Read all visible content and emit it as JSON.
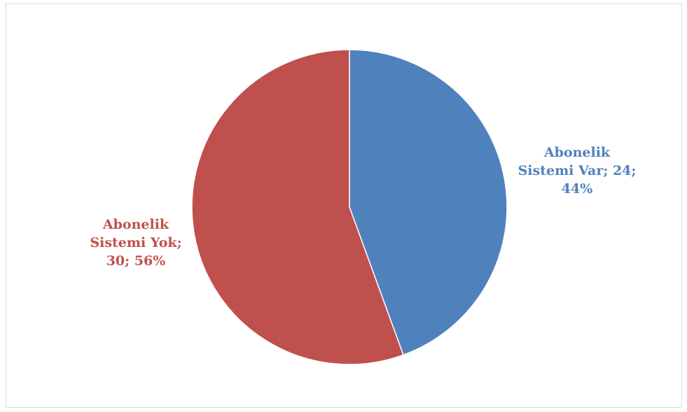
{
  "chart_data": {
    "type": "pie",
    "title": "",
    "slices": [
      {
        "name": "Abonelik Sistemi Var",
        "value": 24,
        "percent": 44,
        "color": "#4F81BD"
      },
      {
        "name": "Abonelik Sistemi Yok",
        "value": 30,
        "percent": 56,
        "color": "#C0504D"
      }
    ],
    "legend": "none",
    "start_angle": "12 o'clock",
    "direction": "clockwise"
  },
  "labels": {
    "var": "Abonelik\nSistemi Var; 24;\n44%",
    "yok": "Abonelik\nSistemi Yok;\n30; 56%"
  }
}
